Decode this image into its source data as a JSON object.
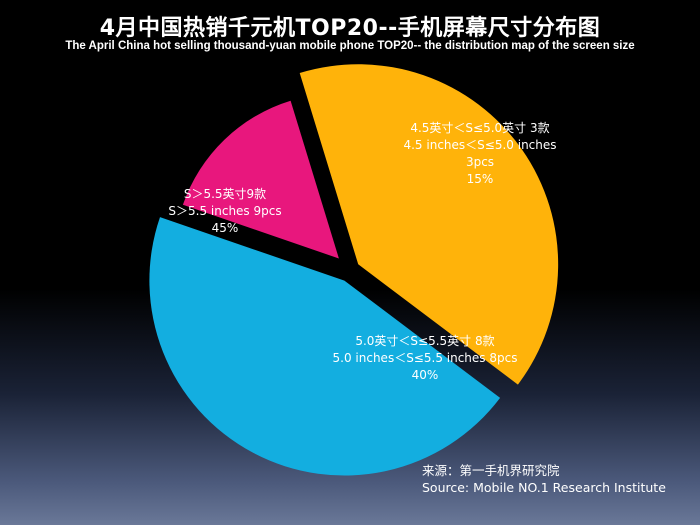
{
  "chart_data": {
    "type": "pie",
    "title": "4月中国热销千元机TOP20--手机屏幕尺寸分布图",
    "subtitle": "The  April  China hot selling thousand-yuan mobile phone TOP20-- the distribution map of the screen size",
    "slices": [
      {
        "label_cn": "4.5英寸＜S≤5.0英寸 3款",
        "label_en": "4.5 inches＜S≤5.0 inches 3pcs",
        "percent_label": "15%",
        "value": 15,
        "color": "#e8177d"
      },
      {
        "label_cn": "5.0英寸＜S≤5.5英寸 8款",
        "label_en": "5.0 inches＜S≤5.5 inches 8pcs",
        "percent_label": "40%",
        "value": 40,
        "color": "#ffb30a"
      },
      {
        "label_cn": "S＞5.5英寸9款",
        "label_en": "S＞5.5 inches 9pcs",
        "percent_label": "45%",
        "value": 45,
        "color": "#13aee0"
      }
    ]
  },
  "source": {
    "line_cn": "来源：第一手机界研究院",
    "line_en": "Source: Mobile NO.1 Research Institute"
  }
}
